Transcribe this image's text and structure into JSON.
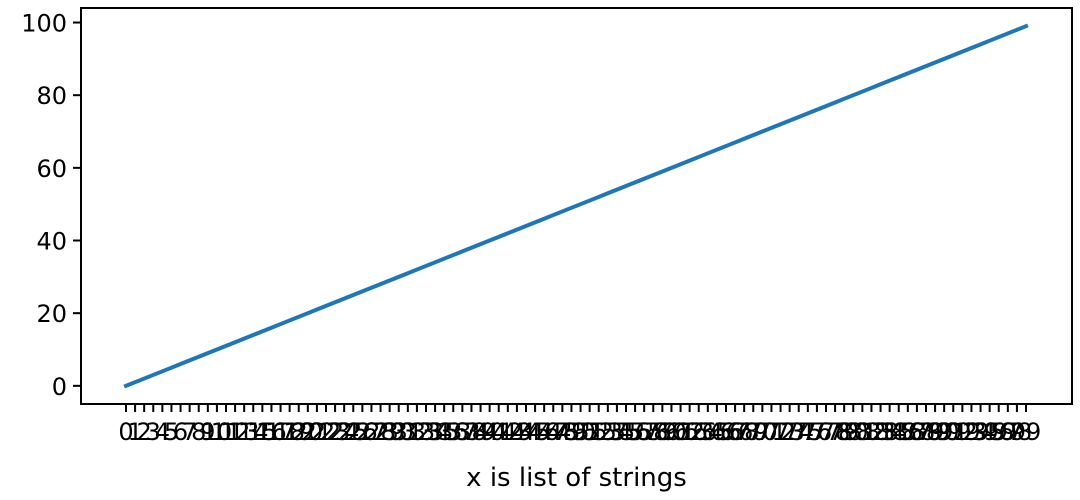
{
  "chart_data": {
    "type": "line",
    "title": "",
    "xlabel": "x is list of strings",
    "ylabel": "",
    "categories": [
      "0",
      "1",
      "2",
      "3",
      "4",
      "5",
      "6",
      "7",
      "8",
      "9",
      "10",
      "11",
      "12",
      "13",
      "14",
      "15",
      "16",
      "17",
      "18",
      "19",
      "20",
      "21",
      "22",
      "23",
      "24",
      "25",
      "26",
      "27",
      "28",
      "29",
      "30",
      "31",
      "32",
      "33",
      "34",
      "35",
      "36",
      "37",
      "38",
      "39",
      "40",
      "41",
      "42",
      "43",
      "44",
      "45",
      "46",
      "47",
      "48",
      "49",
      "50",
      "51",
      "52",
      "53",
      "54",
      "55",
      "56",
      "57",
      "58",
      "59",
      "60",
      "61",
      "62",
      "63",
      "64",
      "65",
      "66",
      "67",
      "68",
      "69",
      "70",
      "71",
      "72",
      "73",
      "74",
      "75",
      "76",
      "77",
      "78",
      "79",
      "80",
      "81",
      "82",
      "83",
      "84",
      "85",
      "86",
      "87",
      "88",
      "89",
      "90",
      "91",
      "92",
      "93",
      "94",
      "95",
      "96",
      "97",
      "98",
      "99"
    ],
    "series": [
      {
        "values": [
          0,
          1,
          2,
          3,
          4,
          5,
          6,
          7,
          8,
          9,
          10,
          11,
          12,
          13,
          14,
          15,
          16,
          17,
          18,
          19,
          20,
          21,
          22,
          23,
          24,
          25,
          26,
          27,
          28,
          29,
          30,
          31,
          32,
          33,
          34,
          35,
          36,
          37,
          38,
          39,
          40,
          41,
          42,
          43,
          44,
          45,
          46,
          47,
          48,
          49,
          50,
          51,
          52,
          53,
          54,
          55,
          56,
          57,
          58,
          59,
          60,
          61,
          62,
          63,
          64,
          65,
          66,
          67,
          68,
          69,
          70,
          71,
          72,
          73,
          74,
          75,
          76,
          77,
          78,
          79,
          80,
          81,
          82,
          83,
          84,
          85,
          86,
          87,
          88,
          89,
          90,
          91,
          92,
          93,
          94,
          95,
          96,
          97,
          98,
          99
        ],
        "color": "#1f77b4"
      }
    ],
    "yticks": [
      "0",
      "20",
      "40",
      "60",
      "80",
      "100"
    ],
    "ylim": [
      -5,
      104
    ],
    "grid": false,
    "legend": "none"
  }
}
